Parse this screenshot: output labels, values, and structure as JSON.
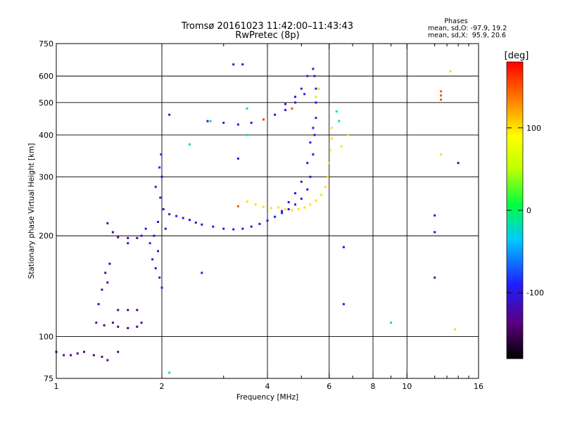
{
  "chart_data": {
    "type": "scatter",
    "title": "Tromsø 20161023 11:42:00–11:43:43",
    "subtitle": "RwPretec (8p)",
    "xlabel": "Frequency [MHz]",
    "ylabel": "Stationary phase Virtual Height [km]",
    "x_scale": "log",
    "y_scale": "log",
    "xlim": [
      1,
      16
    ],
    "ylim": [
      75,
      750
    ],
    "x_ticks": [
      1,
      2,
      4,
      6,
      8,
      10,
      16
    ],
    "x_tick_labels": [
      "1",
      "2",
      "4",
      "6",
      "8",
      "10",
      "16"
    ],
    "x_minor_ticks": [
      3,
      5,
      7,
      9,
      12,
      13,
      14,
      15
    ],
    "y_ticks": [
      75,
      100,
      200,
      300,
      400,
      500,
      600,
      750
    ],
    "y_tick_labels": [
      "75",
      "100",
      "200",
      "300",
      "400",
      "500",
      "600",
      "750"
    ],
    "grid": true,
    "phase_stats": {
      "heading": "Phases",
      "line_o": "mean, sd,O: -97.9, 19.2",
      "line_x": "mean, sd,X:  95.9, 20.6"
    },
    "colorbar": {
      "label": "[deg]",
      "range": [
        -180,
        180
      ],
      "ticks": [
        100,
        0,
        -100
      ],
      "tick_labels": [
        "100",
        "0",
        "-100"
      ]
    },
    "series": [
      {
        "description": "F-region trace, phase near -100 deg",
        "phase": -100,
        "points": [
          [
            2.1,
            232
          ],
          [
            2.2,
            229
          ],
          [
            2.3,
            226
          ],
          [
            2.4,
            223
          ],
          [
            2.5,
            219
          ],
          [
            2.6,
            216
          ],
          [
            2.8,
            213
          ],
          [
            3.0,
            210
          ],
          [
            3.2,
            209
          ],
          [
            3.4,
            210
          ],
          [
            3.6,
            213
          ],
          [
            3.8,
            217
          ],
          [
            4.0,
            222
          ],
          [
            4.2,
            228
          ],
          [
            4.4,
            234
          ],
          [
            4.6,
            240
          ],
          [
            4.8,
            248
          ],
          [
            5.0,
            258
          ],
          [
            5.2,
            275
          ],
          [
            5.3,
            300
          ],
          [
            5.4,
            350
          ],
          [
            5.45,
            400
          ],
          [
            5.5,
            450
          ],
          [
            5.5,
            500
          ],
          [
            5.5,
            550
          ],
          [
            5.45,
            600
          ],
          [
            4.5,
            495
          ],
          [
            4.8,
            520
          ],
          [
            5.0,
            550
          ],
          [
            5.2,
            600
          ],
          [
            5.4,
            630
          ],
          [
            4.4,
            237
          ],
          [
            4.6,
            252
          ],
          [
            4.8,
            268
          ],
          [
            5.0,
            290
          ],
          [
            5.2,
            330
          ],
          [
            5.3,
            380
          ],
          [
            5.4,
            420
          ],
          [
            2.7,
            440
          ],
          [
            3.0,
            435
          ],
          [
            3.3,
            430
          ],
          [
            3.6,
            435
          ],
          [
            3.9,
            445
          ],
          [
            4.2,
            460
          ],
          [
            4.5,
            475
          ],
          [
            4.8,
            500
          ],
          [
            5.1,
            530
          ],
          [
            2.0,
            300
          ],
          [
            1.98,
            260
          ],
          [
            2.02,
            240
          ],
          [
            1.95,
            220
          ],
          [
            2.05,
            210
          ],
          [
            1.9,
            200
          ],
          [
            1.85,
            190
          ],
          [
            1.95,
            180
          ],
          [
            1.88,
            170
          ],
          [
            1.92,
            160
          ],
          [
            1.97,
            150
          ],
          [
            2.0,
            140
          ],
          [
            1.97,
            320
          ],
          [
            1.99,
            350
          ],
          [
            1.92,
            280
          ],
          [
            1.6,
            190
          ],
          [
            1.75,
            200
          ],
          [
            1.8,
            210
          ],
          [
            2.1,
            460
          ],
          [
            3.2,
            650
          ],
          [
            3.4,
            650
          ],
          [
            6.6,
            185
          ],
          [
            6.6,
            125
          ],
          [
            3.3,
            340
          ],
          [
            2.6,
            155
          ]
        ]
      },
      {
        "description": "X-mode trace, phase near +100 deg",
        "phase": 100,
        "points": [
          [
            3.5,
            253
          ],
          [
            3.7,
            248
          ],
          [
            3.9,
            244
          ],
          [
            4.1,
            242
          ],
          [
            4.3,
            243
          ],
          [
            4.5,
            240
          ],
          [
            4.7,
            238
          ],
          [
            4.9,
            240
          ],
          [
            5.1,
            243
          ],
          [
            5.3,
            248
          ],
          [
            5.5,
            255
          ],
          [
            5.7,
            265
          ],
          [
            5.85,
            280
          ],
          [
            5.95,
            300
          ],
          [
            6.0,
            330
          ],
          [
            6.05,
            360
          ],
          [
            6.1,
            390
          ],
          [
            6.1,
            420
          ],
          [
            5.5,
            520
          ],
          [
            5.6,
            550
          ],
          [
            6.8,
            400
          ],
          [
            6.5,
            370
          ],
          [
            13.3,
            620
          ],
          [
            13.7,
            105
          ],
          [
            12.5,
            350
          ]
        ]
      },
      {
        "description": "E-region and low echoes, phase near -130 deg",
        "phase": -130,
        "points": [
          [
            1.0,
            90
          ],
          [
            1.05,
            88
          ],
          [
            1.1,
            88
          ],
          [
            1.15,
            89
          ],
          [
            1.2,
            90
          ],
          [
            1.28,
            88
          ],
          [
            1.35,
            87
          ],
          [
            1.4,
            85
          ],
          [
            1.5,
            90
          ],
          [
            1.3,
            110
          ],
          [
            1.37,
            108
          ],
          [
            1.45,
            110
          ],
          [
            1.5,
            107
          ],
          [
            1.6,
            106
          ],
          [
            1.7,
            107
          ],
          [
            1.75,
            110
          ],
          [
            1.32,
            125
          ],
          [
            1.35,
            138
          ],
          [
            1.4,
            145
          ],
          [
            1.38,
            155
          ],
          [
            1.42,
            165
          ],
          [
            1.5,
            120
          ],
          [
            1.6,
            120
          ],
          [
            1.7,
            120
          ],
          [
            1.4,
            218
          ],
          [
            1.45,
            205
          ],
          [
            1.5,
            198
          ],
          [
            1.6,
            197
          ],
          [
            1.7,
            197
          ],
          [
            12.0,
            205
          ],
          [
            12.0,
            230
          ],
          [
            12.0,
            150
          ],
          [
            14.0,
            330
          ]
        ]
      },
      {
        "description": "Scattered echoes, phase near -20 deg",
        "phase": -20,
        "points": [
          [
            2.1,
            78
          ],
          [
            2.4,
            375
          ],
          [
            2.75,
            440
          ],
          [
            3.5,
            480
          ],
          [
            6.3,
            470
          ],
          [
            6.4,
            440
          ],
          [
            9.0,
            110
          ],
          [
            3.5,
            400
          ]
        ]
      },
      {
        "description": "Scattered echoes, phase near +150 deg",
        "phase": 150,
        "points": [
          [
            12.5,
            510
          ],
          [
            12.5,
            525
          ],
          [
            12.5,
            540
          ],
          [
            3.9,
            445
          ],
          [
            4.7,
            480
          ],
          [
            3.3,
            245
          ]
        ]
      }
    ]
  }
}
